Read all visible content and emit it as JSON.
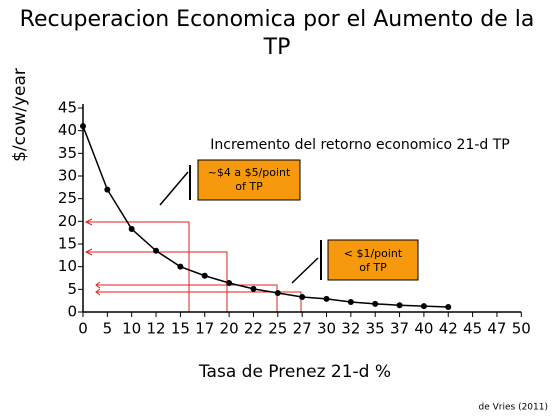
{
  "chart_data": {
    "type": "line",
    "title": "Recuperacion  Economica por el  Aumento de la TP",
    "title_lines": [
      "Recuperacion  Economica por el  Aumento de la",
      "TP"
    ],
    "ylabel": "$/cow/year",
    "xlabel": "Tasa de Prenez 21-d  %",
    "categories": [
      "0",
      "5",
      "10",
      "12",
      "15",
      "17",
      "20",
      "22",
      "25",
      "27",
      "30",
      "32",
      "35",
      "37",
      "40",
      "42",
      "45",
      "47",
      "50"
    ],
    "series": [
      {
        "name": "$/cow/year",
        "color": "#000000",
        "values": [
          41,
          27,
          18.3,
          13.5,
          10,
          8,
          6.4,
          5.1,
          4.2,
          3.3,
          2.9,
          2.2,
          1.8,
          1.5,
          1.3,
          1.1,
          null,
          null,
          null
        ]
      }
    ],
    "ylim": [
      0,
      45
    ],
    "yticks": [
      0,
      5,
      10,
      15,
      20,
      25,
      30,
      35,
      40,
      45
    ],
    "annotations": [
      "Incremento del retorno economico    21-d TP",
      "~$4 a $5/point of TP",
      "< $1/point of TP"
    ],
    "source": "de Vries (2011)"
  }
}
